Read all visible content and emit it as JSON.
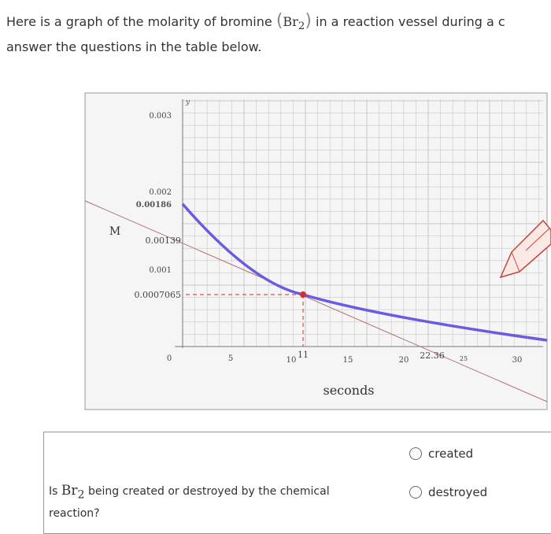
{
  "intro": {
    "line1_before": "Here is a graph of the molarity of bromine",
    "formula_symbol": "Br",
    "formula_sub": "2",
    "line1_after": "in a reaction vessel during a c",
    "line2": "answer the questions in the table below."
  },
  "graph": {
    "y_axis_name": "y",
    "y_variable": "M",
    "x_label": "seconds",
    "y_tick_labels": [
      "0.003",
      "0.002",
      "0.00186",
      "0.00139",
      "0.001",
      "0.0007065"
    ],
    "x_tick_labels": [
      "0",
      "5",
      "10",
      "11",
      "15",
      "20",
      "22.36",
      "25",
      "30"
    ]
  },
  "question": {
    "text_before": "Is",
    "formula_symbol": "Br",
    "formula_sub": "2",
    "text_after": "being created or destroyed by the chemical",
    "text_line2": "reaction?",
    "options": [
      "created",
      "destroyed"
    ]
  }
}
